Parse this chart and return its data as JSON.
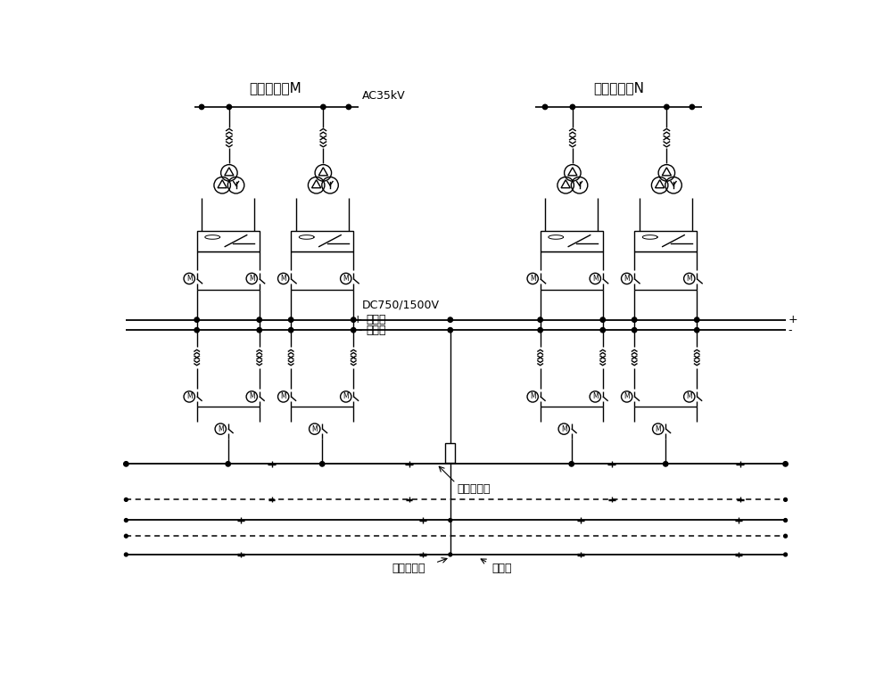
{
  "title_M": "牵引变电所M",
  "title_N": "牵引变电所N",
  "label_AC": "AC35kV",
  "label_DC": "DC750/1500V",
  "label_pos_bus": "正母线",
  "label_neg_bus": "负母线",
  "label_up_contact": "上行接触网",
  "label_down_contact": "下行接触网",
  "label_rail": "走行轨",
  "bg_color": "#ffffff",
  "line_color": "#000000",
  "fig_width": 10.0,
  "fig_height": 7.75,
  "dpi": 100
}
